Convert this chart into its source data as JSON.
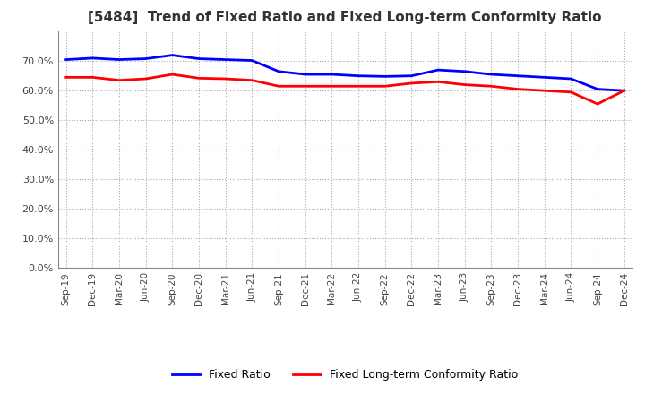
{
  "title": "[5484]  Trend of Fixed Ratio and Fixed Long-term Conformity Ratio",
  "x_labels": [
    "Sep-19",
    "Dec-19",
    "Mar-20",
    "Jun-20",
    "Sep-20",
    "Dec-20",
    "Mar-21",
    "Jun-21",
    "Sep-21",
    "Dec-21",
    "Mar-22",
    "Jun-22",
    "Sep-22",
    "Dec-22",
    "Mar-23",
    "Jun-23",
    "Sep-23",
    "Dec-23",
    "Mar-24",
    "Jun-24",
    "Sep-24",
    "Dec-24"
  ],
  "fixed_ratio": [
    70.5,
    71.0,
    70.5,
    70.8,
    72.0,
    70.8,
    70.5,
    70.2,
    66.5,
    65.5,
    65.5,
    65.0,
    64.8,
    65.0,
    67.0,
    66.5,
    65.5,
    65.0,
    64.5,
    64.0,
    60.5,
    60.0
  ],
  "fixed_lt_ratio": [
    64.5,
    64.5,
    63.5,
    64.0,
    65.5,
    64.2,
    64.0,
    63.5,
    61.5,
    61.5,
    61.5,
    61.5,
    61.5,
    62.5,
    63.0,
    62.0,
    61.5,
    60.5,
    60.0,
    59.5,
    55.5,
    60.0
  ],
  "fixed_ratio_color": "#0000FF",
  "fixed_lt_ratio_color": "#FF0000",
  "ylim": [
    0.0,
    80.0
  ],
  "yticks": [
    0.0,
    10.0,
    20.0,
    30.0,
    40.0,
    50.0,
    60.0,
    70.0
  ],
  "background_color": "#FFFFFF",
  "grid_color": "#AAAAAA",
  "title_fontsize": 11,
  "legend_labels": [
    "Fixed Ratio",
    "Fixed Long-term Conformity Ratio"
  ]
}
